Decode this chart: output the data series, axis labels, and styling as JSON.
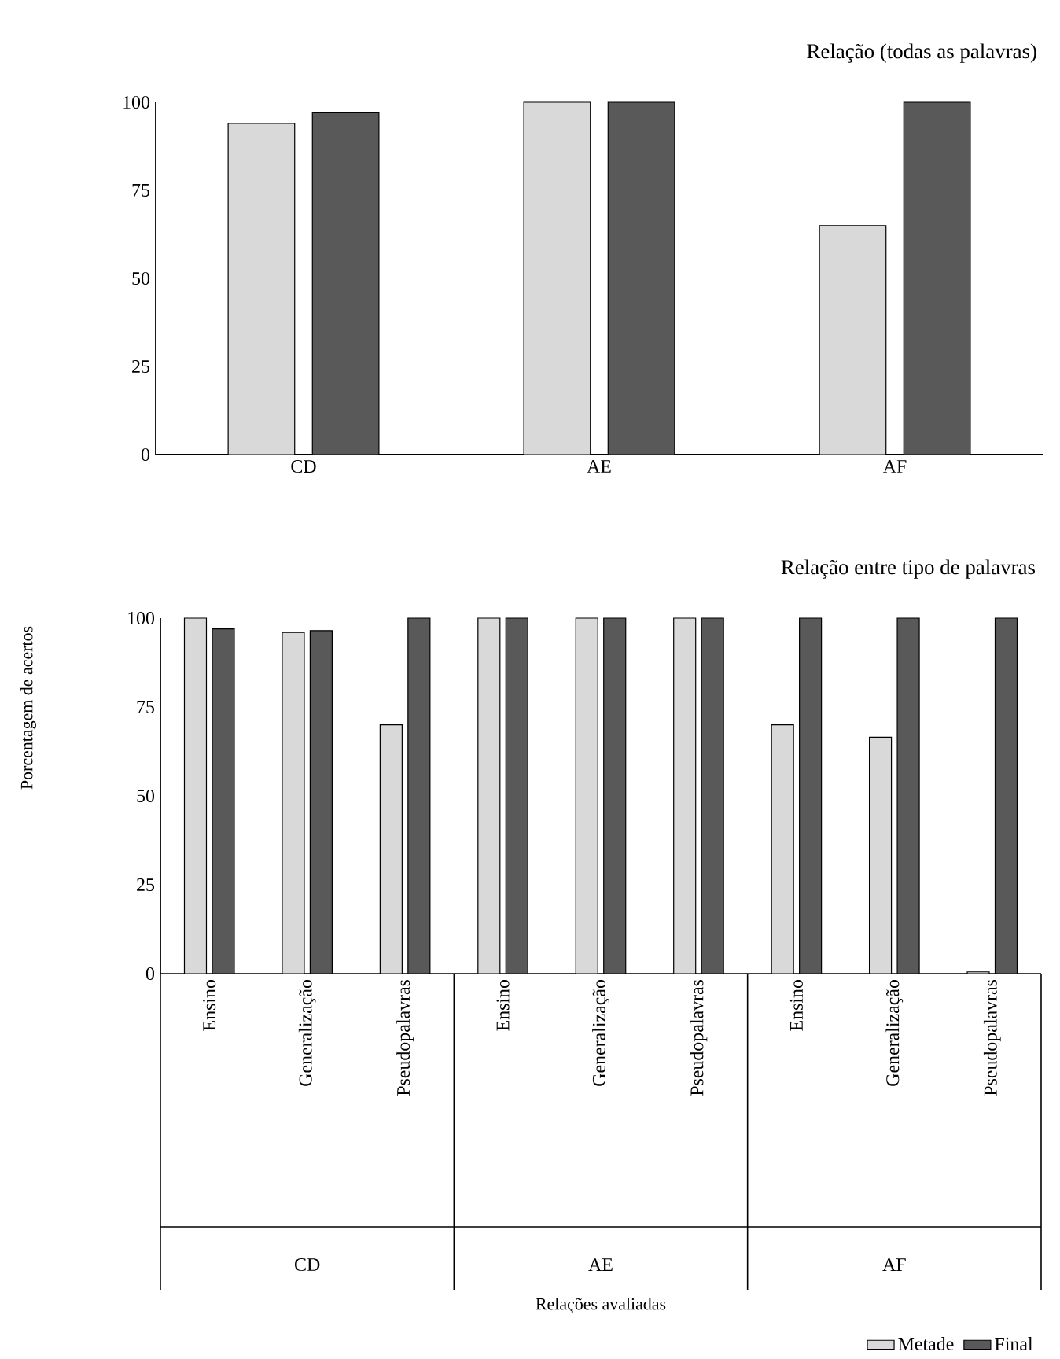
{
  "chart_data": [
    {
      "type": "bar",
      "title": "Relação (todas as palavras)",
      "categories": [
        "CD",
        "AE",
        "AF"
      ],
      "series": [
        {
          "color": "#d9d9d9",
          "values": [
            94,
            100,
            65
          ]
        },
        {
          "color": "#595959",
          "values": [
            97,
            100,
            100
          ]
        }
      ],
      "ylim": [
        0,
        100
      ],
      "yticks": [
        0,
        25,
        50,
        75,
        100
      ]
    },
    {
      "type": "bar",
      "title": "Relação entre tipo de palavras",
      "xlabel": "Relações avaliadas",
      "ylabel": "Porcentagem de acertos",
      "categories": [
        "Ensino",
        "Generalização",
        "Pseudopalavras",
        "Ensino",
        "Generalização",
        "Pseudopalavras",
        "Ensino",
        "Generalização",
        "Pseudopalavras"
      ],
      "annotations": [
        "CD",
        "AE",
        "AF"
      ],
      "series": [
        {
          "name": "Metade",
          "color": "#d9d9d9",
          "values": [
            100,
            96,
            70,
            100,
            100,
            100,
            70,
            66.5,
            0.5
          ]
        },
        {
          "name": "Final",
          "color": "#595959",
          "values": [
            97,
            96.5,
            100,
            100,
            100,
            100,
            100,
            100,
            100
          ]
        }
      ],
      "ylim": [
        0,
        100
      ],
      "yticks": [
        0,
        25,
        50,
        75,
        100
      ],
      "legend": "bottom right"
    }
  ]
}
